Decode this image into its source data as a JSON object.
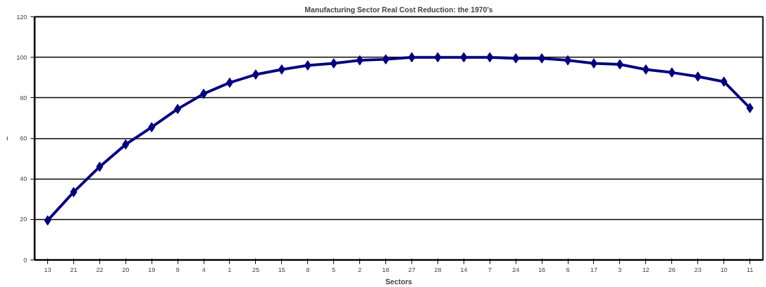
{
  "chart_data": {
    "type": "line",
    "title": "Manufacturing Sector Real Cost Reduction: the 1970's",
    "xlabel": "Sectors",
    "ylabel": "–",
    "categories": [
      "13",
      "21",
      "22",
      "20",
      "19",
      "9",
      "4",
      "1",
      "25",
      "15",
      "8",
      "5",
      "2",
      "18",
      "27",
      "28",
      "14",
      "7",
      "24",
      "16",
      "6",
      "17",
      "3",
      "12",
      "26",
      "23",
      "10",
      "11"
    ],
    "series": [
      {
        "color": "#000080",
        "values": [
          19.5,
          33.5,
          46,
          57,
          65.5,
          74.5,
          82,
          87.5,
          91.5,
          94,
          96,
          97,
          98.5,
          99,
          100,
          100,
          100,
          100,
          99.5,
          99.5,
          98.5,
          97,
          96.5,
          94,
          92.5,
          90.5,
          88,
          75
        ]
      }
    ],
    "ylim": [
      0,
      120
    ],
    "yticks": [
      0,
      20,
      40,
      60,
      80,
      100,
      120
    ],
    "grid": "y",
    "marker": "diamond",
    "line_style": "solid"
  }
}
